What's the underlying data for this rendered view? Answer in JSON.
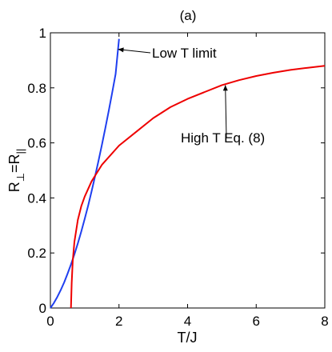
{
  "chart_data": {
    "type": "line",
    "title": "(a)",
    "xlabel": "T/J",
    "ylabel": {
      "base": "R",
      "sub1": "⊥",
      "eq": "=R",
      "sub2": "||"
    },
    "xlim": [
      0,
      8
    ],
    "ylim": [
      0,
      1
    ],
    "x_ticks": [
      0,
      2,
      4,
      6,
      8
    ],
    "y_ticks": [
      0,
      0.2,
      0.4,
      0.6,
      0.8,
      1
    ],
    "y_tick_labels": [
      "0",
      "0.2",
      "0.4",
      "0.6",
      "0.8",
      "1"
    ],
    "grid": false,
    "legend": "none",
    "series": [
      {
        "color": "#1f3ff0",
        "x": [
          0,
          0.1,
          0.2,
          0.3,
          0.4,
          0.5,
          0.6,
          0.7,
          0.8,
          0.9,
          1.0,
          1.1,
          1.2,
          1.3,
          1.4,
          1.5,
          1.6,
          1.7,
          1.8,
          1.9,
          2.0
        ],
        "y": [
          0,
          0.018,
          0.04,
          0.065,
          0.093,
          0.124,
          0.158,
          0.195,
          0.235,
          0.278,
          0.324,
          0.372,
          0.423,
          0.477,
          0.533,
          0.592,
          0.653,
          0.716,
          0.782,
          0.85,
          0.978
        ]
      },
      {
        "color": "#ee0000",
        "x": [
          0.6,
          0.62,
          0.65,
          0.7,
          0.8,
          0.9,
          1.0,
          1.2,
          1.5,
          2.0,
          2.5,
          3.0,
          3.5,
          4.0,
          4.5,
          5.0,
          5.5,
          6.0,
          6.5,
          7.0,
          7.5,
          8.0
        ],
        "y": [
          0.0,
          0.09,
          0.17,
          0.24,
          0.32,
          0.37,
          0.405,
          0.46,
          0.52,
          0.59,
          0.64,
          0.69,
          0.73,
          0.76,
          0.785,
          0.81,
          0.828,
          0.843,
          0.855,
          0.865,
          0.873,
          0.88
        ]
      }
    ],
    "annotations": [
      {
        "text": "Low T limit",
        "arrow_to": [
          1.97,
          0.94
        ]
      },
      {
        "text": "High T Eq. (8)",
        "arrow_to": [
          5.1,
          0.81
        ]
      }
    ]
  }
}
